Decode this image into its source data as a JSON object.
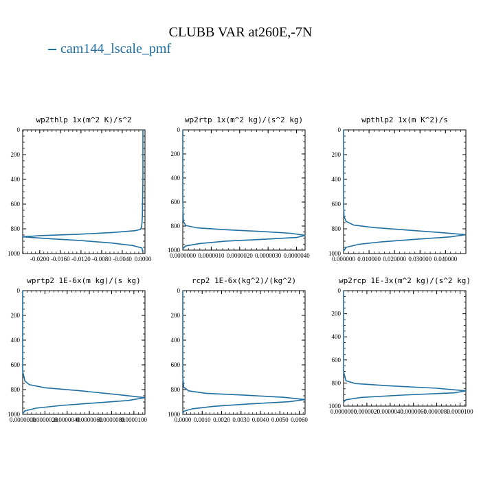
{
  "figure": {
    "title": "CLUBB VAR at260E,-7N",
    "legend": {
      "label": "cam144_lscale_pmf",
      "color": "#1f6fa0"
    }
  },
  "chart_data": [
    {
      "type": "line",
      "title": "wp2thlp   1x(m^2 K)/s^2",
      "ylim": [
        1000,
        0
      ],
      "xlim": [
        -0.0233,
        0.0004
      ],
      "x_ticks": [
        "-0.0200",
        "-0.0160",
        "-0.0120",
        "-0.0080",
        "-0.0040",
        "0.0000"
      ],
      "x_tick_values": [
        -0.02,
        -0.016,
        -0.012,
        -0.008,
        -0.004,
        0.0
      ],
      "y_ticks": [
        "0",
        "200",
        "400",
        "600",
        "800",
        "1000"
      ],
      "series": [
        {
          "color": "#1f6fa0",
          "x": [
            0.0,
            0.0,
            -0.0001,
            -0.0002,
            -0.0003,
            -0.0005,
            -0.0015,
            -0.006,
            -0.013,
            -0.02,
            -0.0233,
            -0.018,
            -0.012,
            -0.006,
            -0.002,
            -0.0002,
            0.0
          ],
          "y": [
            0,
            400,
            700,
            760,
            790,
            805,
            815,
            830,
            845,
            855,
            865,
            880,
            895,
            915,
            935,
            955,
            990
          ]
        }
      ]
    },
    {
      "type": "line",
      "title": "wp2rtp   1x(m^2 kg)/(s^2 kg)",
      "ylim": [
        1000,
        0
      ],
      "xlim": [
        0,
        4.3e-06
      ],
      "x_ticks": [
        "0.0000000",
        "0.0000010",
        "0.0000020",
        "0.0000030",
        "0.0000040"
      ],
      "x_tick_values": [
        0,
        1e-06,
        2e-06,
        3e-06,
        4e-06
      ],
      "y_ticks": [
        "0",
        "200",
        "400",
        "600",
        "800",
        "1000"
      ],
      "series": [
        {
          "color": "#1f6fa0",
          "x": [
            0.0,
            0.0,
            2e-08,
            1e-07,
            5e-07,
            1.5e-06,
            2.8e-06,
            3.8e-06,
            4.3e-06,
            4e-06,
            2.8e-06,
            1.5e-06,
            6e-07,
            1e-07,
            0.0
          ],
          "y": [
            0,
            600,
            760,
            795,
            815,
            830,
            845,
            860,
            878,
            895,
            910,
            925,
            945,
            965,
            990
          ]
        }
      ]
    },
    {
      "type": "line",
      "title": "wpthlp2   1x(m K^2)/s",
      "ylim": [
        1000,
        0
      ],
      "xlim": [
        0,
        0.048
      ],
      "x_ticks": [
        "0.000000",
        "0.010000",
        "0.020000",
        "0.030000",
        "0.040000"
      ],
      "x_tick_values": [
        0,
        0.01,
        0.02,
        0.03,
        0.04
      ],
      "y_ticks": [
        "0",
        "200",
        "400",
        "600",
        "800",
        "1000"
      ],
      "series": [
        {
          "color": "#1f6fa0",
          "x": [
            0.0,
            0.0,
            0.0002,
            0.001,
            0.004,
            0.012,
            0.025,
            0.038,
            0.048,
            0.042,
            0.028,
            0.015,
            0.006,
            0.001,
            0.0
          ],
          "y": [
            0,
            600,
            700,
            740,
            770,
            790,
            810,
            830,
            848,
            865,
            885,
            905,
            925,
            950,
            980
          ]
        }
      ]
    },
    {
      "type": "line",
      "title": "wprtp2   1E-6x(m kg)/(s kg)",
      "ylim": [
        1000,
        0
      ],
      "xlim": [
        0,
        1.1e-05
      ],
      "x_ticks": [
        "0.0000000",
        "0.0000020",
        "0.0000040",
        "0.0000060",
        "0.0000080",
        "0.0000100"
      ],
      "x_tick_values": [
        0,
        2e-06,
        4e-06,
        6e-06,
        8e-06,
        1e-05
      ],
      "y_ticks": [
        "0",
        "200",
        "400",
        "600",
        "800",
        "1000"
      ],
      "series": [
        {
          "color": "#1f6fa0",
          "x": [
            0.0,
            0.0,
            2e-07,
            6e-07,
            2e-06,
            5e-06,
            8.5e-06,
            1.1e-05,
            9.5e-06,
            6.5e-06,
            3.5e-06,
            1.2e-06,
            2e-07,
            0.0
          ],
          "y": [
            0,
            650,
            730,
            760,
            785,
            808,
            840,
            865,
            888,
            908,
            928,
            950,
            972,
            995
          ]
        }
      ]
    },
    {
      "type": "line",
      "title": "rcp2   1E-6x(kg^2)/(kg^2)",
      "ylim": [
        1000,
        0
      ],
      "xlim": [
        0,
        0.0063
      ],
      "x_ticks": [
        "0.0000",
        "0.0010",
        "0.0020",
        "0.0030",
        "0.0040",
        "0.0050",
        "0.0060"
      ],
      "x_tick_values": [
        0,
        0.001,
        0.002,
        0.003,
        0.004,
        0.005,
        0.006
      ],
      "y_ticks": [
        "0",
        "200",
        "400",
        "600",
        "800",
        "1000"
      ],
      "series": [
        {
          "color": "#1f6fa0",
          "x": [
            0.0,
            0.0,
            5e-05,
            0.0003,
            0.0012,
            0.0032,
            0.0052,
            0.0063,
            0.0055,
            0.0035,
            0.0016,
            0.0005,
            5e-05,
            0.0
          ],
          "y": [
            0,
            700,
            780,
            810,
            830,
            845,
            862,
            880,
            898,
            915,
            935,
            955,
            975,
            995
          ]
        }
      ]
    },
    {
      "type": "line",
      "title": "wp2rcp   1E-3x(m^2 kg)/(s^2 kg)",
      "ylim": [
        1000,
        0
      ],
      "xlim": [
        0,
        1.05e-05
      ],
      "x_ticks": [
        "0.0000000",
        "0.0000020",
        "0.0000040",
        "0.0000060",
        "0.0000080",
        "0.0000100"
      ],
      "x_tick_values": [
        0,
        2e-06,
        4e-06,
        6e-06,
        8e-06,
        1e-05
      ],
      "y_ticks": [
        "0",
        "200",
        "400",
        "600",
        "800",
        "1000"
      ],
      "series": [
        {
          "color": "#1f6fa0",
          "x": [
            0.0,
            0.0,
            2e-07,
            1e-06,
            4e-06,
            8e-06,
            1.05e-05,
            9.5e-06,
            5e-06,
            1.5e-06,
            2e-07,
            0.0
          ],
          "y": [
            0,
            700,
            780,
            805,
            825,
            845,
            868,
            885,
            905,
            925,
            945,
            965
          ]
        }
      ]
    }
  ]
}
